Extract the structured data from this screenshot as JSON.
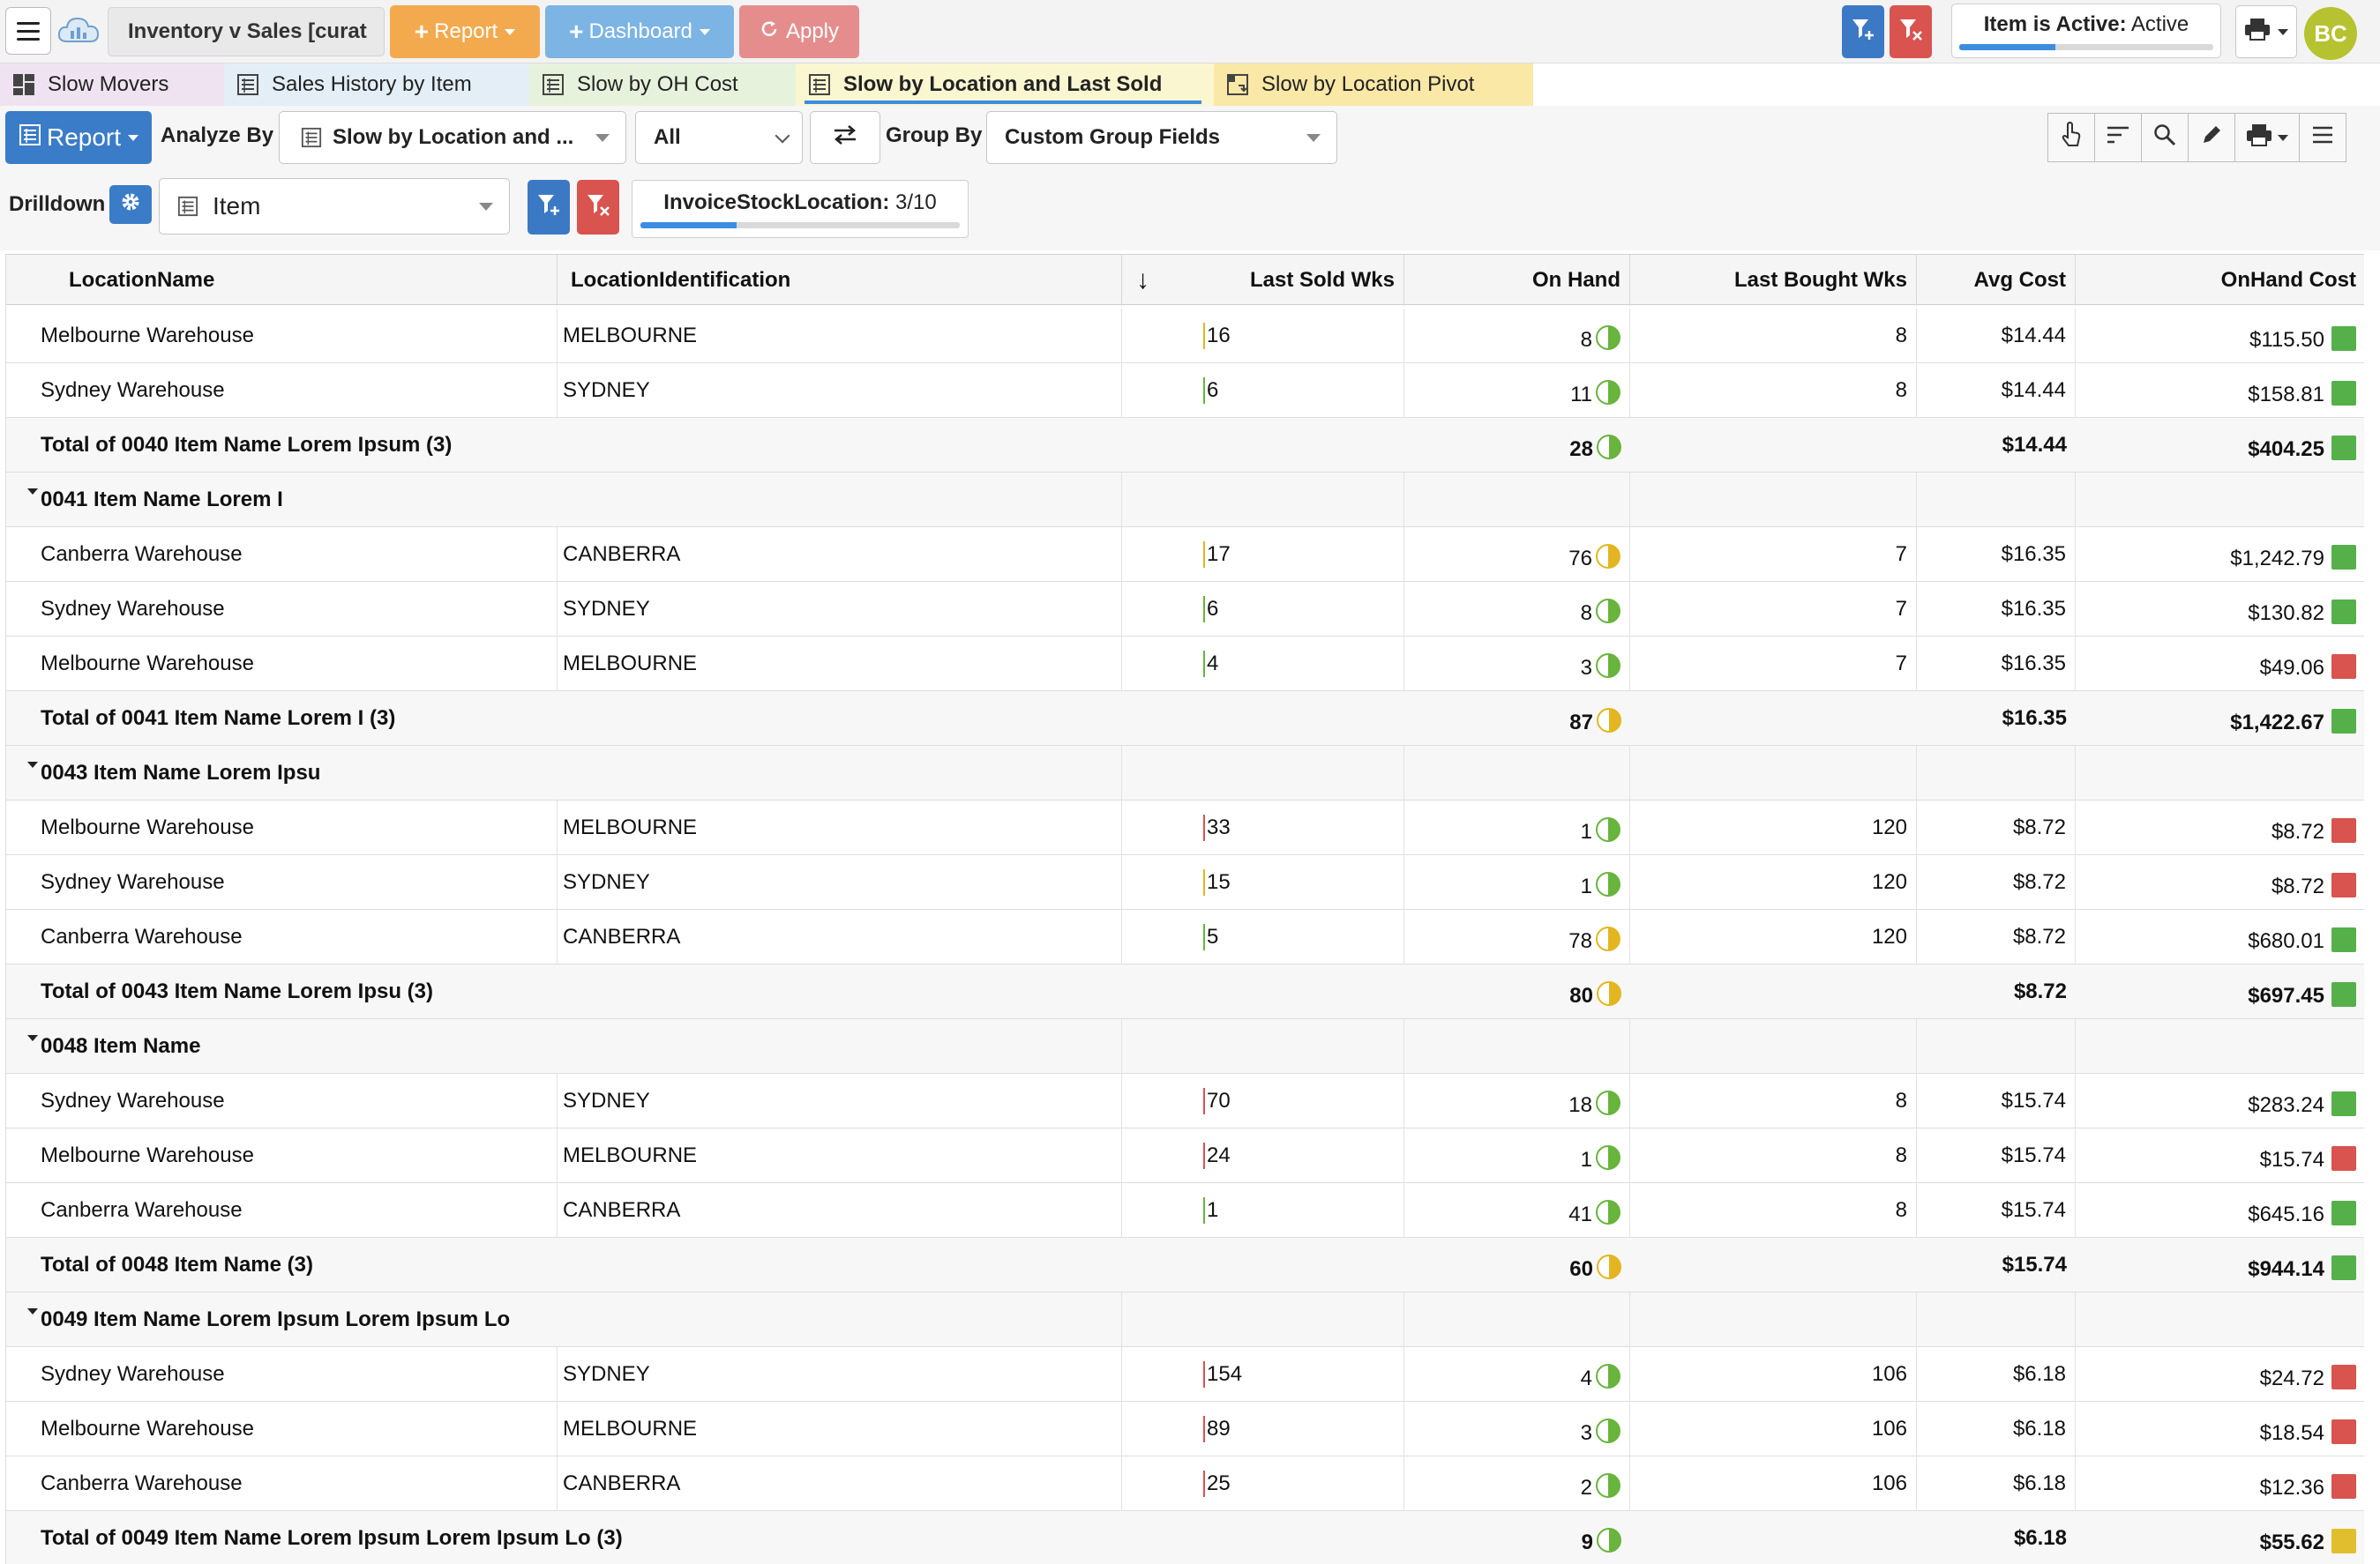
{
  "toolbar": {
    "app_title": "Inventory v Sales [curat",
    "report_label": "Report",
    "dashboard_label": "Dashboard",
    "apply_label": "Apply",
    "active_label": "Item is Active:",
    "active_value": "Active",
    "active_progress": 0.38,
    "avatar_initials": "BC"
  },
  "tabs": [
    {
      "label": "Slow Movers",
      "bg": "#efe3f2",
      "icon": "dashboard-icon"
    },
    {
      "label": "Sales History by Item",
      "bg": "#e4eef6",
      "icon": "grid-report-icon"
    },
    {
      "label": "Slow by OH Cost",
      "bg": "#e7f2dc",
      "icon": "grid-report-icon"
    },
    {
      "label": "Slow by Location and Last Sold",
      "bg": "#faf6d0",
      "icon": "grid-report-icon",
      "active": true
    },
    {
      "label": "Slow by Location Pivot",
      "bg": "#f9e8a6",
      "icon": "pivot-icon"
    }
  ],
  "controls": {
    "report_button": "Report",
    "analyze_by_label": "Analyze By",
    "analyze_by_value": "Slow by Location and ...",
    "filter_value": "All",
    "group_by_label": "Group By",
    "group_by_value": "Custom Group Fields",
    "drilldown_label": "Drilldown",
    "drilldown_value": "Item",
    "stock_location_label": "InvoiceStockLocation:",
    "stock_location_value": "3/10",
    "stock_location_progress": 0.3
  },
  "grid": {
    "columns": [
      "LocationName",
      "LocationIdentification",
      "Last Sold Wks",
      "On Hand",
      "Last Bought Wks",
      "Avg Cost",
      "OnHand Cost"
    ],
    "sort_indicator": "↓",
    "rows": [
      {
        "type": "detail",
        "name": "Melbourne Warehouse",
        "id": "MELBOURNE",
        "sold": "16",
        "sold_color": "#e3b520",
        "onhand": "8",
        "oh_ind": "green",
        "bought": "8",
        "avg": "$14.44",
        "cost": "$115.50",
        "cost_ind": "green"
      },
      {
        "type": "detail",
        "name": "Sydney Warehouse",
        "id": "SYDNEY",
        "sold": "6",
        "sold_color": "#68b43c",
        "onhand": "11",
        "oh_ind": "green",
        "bought": "8",
        "avg": "$14.44",
        "cost": "$158.81",
        "cost_ind": "green"
      },
      {
        "type": "total",
        "label": "Total of 0040 Item Name Lorem Ipsum (3)",
        "onhand": "28",
        "oh_ind": "green",
        "avg": "$14.44",
        "cost": "$404.25",
        "cost_ind": "green"
      },
      {
        "type": "group",
        "label": "0041 Item Name Lorem I"
      },
      {
        "type": "detail",
        "name": "Canberra Warehouse",
        "id": "CANBERRA",
        "sold": "17",
        "sold_color": "#e3b520",
        "onhand": "76",
        "oh_ind": "yellow",
        "bought": "7",
        "avg": "$16.35",
        "cost": "$1,242.79",
        "cost_ind": "green"
      },
      {
        "type": "detail",
        "name": "Sydney Warehouse",
        "id": "SYDNEY",
        "sold": "6",
        "sold_color": "#68b43c",
        "onhand": "8",
        "oh_ind": "green",
        "bought": "7",
        "avg": "$16.35",
        "cost": "$130.82",
        "cost_ind": "green"
      },
      {
        "type": "detail",
        "name": "Melbourne Warehouse",
        "id": "MELBOURNE",
        "sold": "4",
        "sold_color": "#68b43c",
        "onhand": "3",
        "oh_ind": "green",
        "bought": "7",
        "avg": "$16.35",
        "cost": "$49.06",
        "cost_ind": "red"
      },
      {
        "type": "total",
        "label": "Total of 0041 Item Name Lorem I (3)",
        "onhand": "87",
        "oh_ind": "yellow",
        "avg": "$16.35",
        "cost": "$1,422.67",
        "cost_ind": "green"
      },
      {
        "type": "group",
        "label": "0043 Item Name Lorem Ipsu"
      },
      {
        "type": "detail",
        "name": "Melbourne Warehouse",
        "id": "MELBOURNE",
        "sold": "33",
        "sold_color": "#d9534f",
        "onhand": "1",
        "oh_ind": "green",
        "bought": "120",
        "avg": "$8.72",
        "cost": "$8.72",
        "cost_ind": "red"
      },
      {
        "type": "detail",
        "name": "Sydney Warehouse",
        "id": "SYDNEY",
        "sold": "15",
        "sold_color": "#e3b520",
        "onhand": "1",
        "oh_ind": "green",
        "bought": "120",
        "avg": "$8.72",
        "cost": "$8.72",
        "cost_ind": "red"
      },
      {
        "type": "detail",
        "name": "Canberra Warehouse",
        "id": "CANBERRA",
        "sold": "5",
        "sold_color": "#68b43c",
        "onhand": "78",
        "oh_ind": "yellow",
        "bought": "120",
        "avg": "$8.72",
        "cost": "$680.01",
        "cost_ind": "green"
      },
      {
        "type": "total",
        "label": "Total of 0043 Item Name Lorem Ipsu (3)",
        "onhand": "80",
        "oh_ind": "yellow",
        "avg": "$8.72",
        "cost": "$697.45",
        "cost_ind": "green"
      },
      {
        "type": "group",
        "label": "0048 Item Name"
      },
      {
        "type": "detail",
        "name": "Sydney Warehouse",
        "id": "SYDNEY",
        "sold": "70",
        "sold_color": "#d9534f",
        "onhand": "18",
        "oh_ind": "green",
        "bought": "8",
        "avg": "$15.74",
        "cost": "$283.24",
        "cost_ind": "green"
      },
      {
        "type": "detail",
        "name": "Melbourne Warehouse",
        "id": "MELBOURNE",
        "sold": "24",
        "sold_color": "#d9534f",
        "onhand": "1",
        "oh_ind": "green",
        "bought": "8",
        "avg": "$15.74",
        "cost": "$15.74",
        "cost_ind": "red"
      },
      {
        "type": "detail",
        "name": "Canberra Warehouse",
        "id": "CANBERRA",
        "sold": "1",
        "sold_color": "#68b43c",
        "onhand": "41",
        "oh_ind": "green",
        "bought": "8",
        "avg": "$15.74",
        "cost": "$645.16",
        "cost_ind": "green"
      },
      {
        "type": "total",
        "label": "Total of 0048 Item Name (3)",
        "onhand": "60",
        "oh_ind": "yellow",
        "avg": "$15.74",
        "cost": "$944.14",
        "cost_ind": "green"
      },
      {
        "type": "group",
        "label": "0049 Item Name Lorem Ipsum Lorem Ipsum Lo"
      },
      {
        "type": "detail",
        "name": "Sydney Warehouse",
        "id": "SYDNEY",
        "sold": "154",
        "sold_color": "#d9534f",
        "onhand": "4",
        "oh_ind": "green",
        "bought": "106",
        "avg": "$6.18",
        "cost": "$24.72",
        "cost_ind": "red"
      },
      {
        "type": "detail",
        "name": "Melbourne Warehouse",
        "id": "MELBOURNE",
        "sold": "89",
        "sold_color": "#d9534f",
        "onhand": "3",
        "oh_ind": "green",
        "bought": "106",
        "avg": "$6.18",
        "cost": "$18.54",
        "cost_ind": "red"
      },
      {
        "type": "detail",
        "name": "Canberra Warehouse",
        "id": "CANBERRA",
        "sold": "25",
        "sold_color": "#d9534f",
        "onhand": "2",
        "oh_ind": "green",
        "bought": "106",
        "avg": "$6.18",
        "cost": "$12.36",
        "cost_ind": "red"
      },
      {
        "type": "total",
        "label": "Total of 0049 Item Name Lorem Ipsum Lorem Ipsum Lo (3)",
        "onhand": "9",
        "oh_ind": "green",
        "avg": "$6.18",
        "cost": "$55.62",
        "cost_ind": "yellow"
      }
    ]
  }
}
